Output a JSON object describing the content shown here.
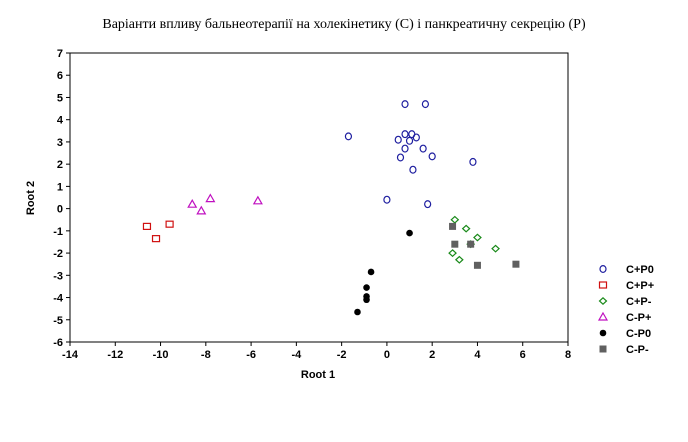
{
  "chart_data": {
    "type": "scatter",
    "title": "Варіанти впливу бальнеотерапії на холекінетику (С) і панкреатичну секрецію (Р)",
    "xlabel": "Root 1",
    "ylabel": "Root 2",
    "xlim": [
      -14,
      8
    ],
    "ylim": [
      -6,
      7
    ],
    "xticks": [
      "-14",
      "-12",
      "-10",
      "-8",
      "-6",
      "-4",
      "-2",
      "0",
      "2",
      "4",
      "6",
      "8"
    ],
    "yticks": [
      "-6",
      "-5",
      "-4",
      "-3",
      "-2",
      "-1",
      "0",
      "1",
      "2",
      "3",
      "4",
      "5",
      "6",
      "7"
    ],
    "grid": false,
    "legend_position": "right",
    "series": [
      {
        "name": "C+P0",
        "marker": "circle-open",
        "color": "#1f1fa0",
        "points": [
          [
            -1.7,
            3.25
          ],
          [
            0.8,
            4.7
          ],
          [
            1.7,
            4.7
          ],
          [
            0.8,
            3.35
          ],
          [
            1.1,
            3.35
          ],
          [
            1.3,
            3.2
          ],
          [
            0.5,
            3.1
          ],
          [
            1.0,
            3.05
          ],
          [
            0.8,
            2.7
          ],
          [
            1.6,
            2.7
          ],
          [
            0.6,
            2.3
          ],
          [
            2.0,
            2.35
          ],
          [
            3.8,
            2.1
          ],
          [
            1.15,
            1.75
          ],
          [
            0.0,
            0.4
          ],
          [
            1.8,
            0.2
          ]
        ]
      },
      {
        "name": "C+P+",
        "marker": "square-open",
        "color": "#d01010",
        "points": [
          [
            -10.6,
            -0.8
          ],
          [
            -9.6,
            -0.7
          ],
          [
            -10.2,
            -1.35
          ]
        ]
      },
      {
        "name": "C+P-",
        "marker": "diamond-open",
        "color": "#1a8a1a",
        "points": [
          [
            3.0,
            -0.5
          ],
          [
            3.5,
            -0.9
          ],
          [
            4.0,
            -1.3
          ],
          [
            3.7,
            -1.6
          ],
          [
            4.8,
            -1.8
          ],
          [
            2.9,
            -2.0
          ],
          [
            3.2,
            -2.3
          ]
        ]
      },
      {
        "name": "C-P+",
        "marker": "triangle-open",
        "color": "#c010c0",
        "points": [
          [
            -7.8,
            0.45
          ],
          [
            -8.6,
            0.2
          ],
          [
            -8.2,
            -0.1
          ],
          [
            -5.7,
            0.35
          ]
        ]
      },
      {
        "name": "C-P0",
        "marker": "circle-filled",
        "color": "#000000",
        "points": [
          [
            1.0,
            -1.1
          ],
          [
            -0.7,
            -2.85
          ],
          [
            -0.9,
            -3.55
          ],
          [
            -0.9,
            -3.95
          ],
          [
            -0.9,
            -4.1
          ],
          [
            -1.3,
            -4.65
          ]
        ]
      },
      {
        "name": "C-P-",
        "marker": "square-filled",
        "color": "#606060",
        "points": [
          [
            2.9,
            -0.8
          ],
          [
            3.0,
            -1.6
          ],
          [
            3.7,
            -1.6
          ],
          [
            4.0,
            -2.55
          ],
          [
            5.7,
            -2.5
          ]
        ]
      }
    ]
  }
}
